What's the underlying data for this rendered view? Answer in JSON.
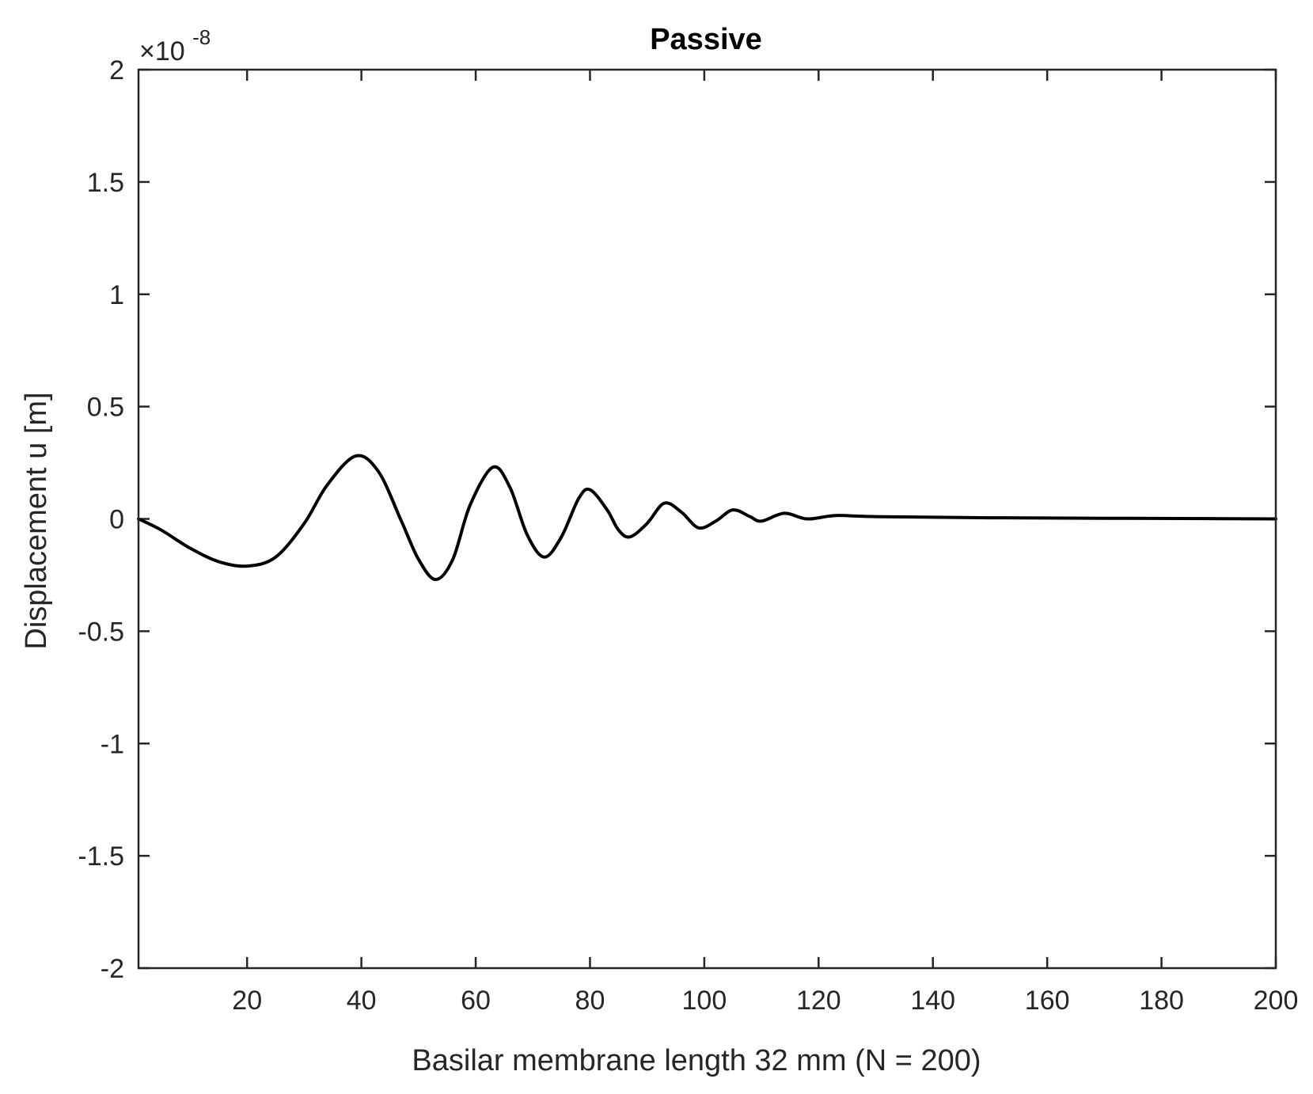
{
  "chart_data": {
    "type": "line",
    "title": "Passive",
    "xlabel": "Basilar membrane length 32 mm  (N = 200)",
    "ylabel": "Displacement u [m]",
    "y_exponent_prefix": "×10",
    "y_exponent": "-8",
    "xlim": [
      1,
      200
    ],
    "ylim": [
      -2,
      2
    ],
    "xticks": [
      20,
      40,
      60,
      80,
      100,
      120,
      140,
      160,
      180,
      200
    ],
    "xtick_labels": [
      "20",
      "40",
      "60",
      "80",
      "100",
      "120",
      "140",
      "160",
      "180",
      "200"
    ],
    "yticks": [
      -2,
      -1.5,
      -1,
      -0.5,
      0,
      0.5,
      1,
      1.5,
      2
    ],
    "ytick_labels": [
      "-2",
      "-1.5",
      "-1",
      "-0.5",
      "0",
      "0.5",
      "1",
      "1.5",
      "2"
    ],
    "grid": false,
    "box": true,
    "line_color": "#000000",
    "series": [
      {
        "x": [
          1,
          5,
          10,
          15,
          20,
          25,
          30,
          34,
          39,
          43,
          47,
          50,
          53,
          56,
          59,
          63,
          66,
          69,
          72,
          75,
          78,
          80,
          83,
          85,
          87,
          90,
          93,
          96,
          99,
          102,
          105,
          108,
          110,
          114,
          118,
          123,
          130,
          150,
          200
        ],
        "y": [
          0,
          -0.05,
          -0.13,
          -0.19,
          -0.21,
          -0.17,
          -0.02,
          0.15,
          0.28,
          0.21,
          -0.01,
          -0.18,
          -0.27,
          -0.18,
          0.06,
          0.23,
          0.14,
          -0.07,
          -0.17,
          -0.08,
          0.09,
          0.13,
          0.04,
          -0.05,
          -0.08,
          -0.02,
          0.07,
          0.03,
          -0.04,
          -0.01,
          0.04,
          0.01,
          -0.01,
          0.025,
          0.0,
          0.015,
          0.01,
          0.005,
          0.0
        ]
      }
    ]
  }
}
